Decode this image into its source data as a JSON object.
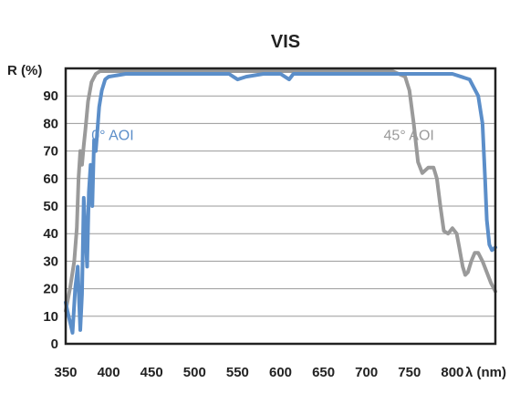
{
  "chart_data": {
    "type": "line",
    "title": "VIS",
    "xlabel": "λ (nm)",
    "ylabel": "R (%)",
    "xlim": [
      350,
      850
    ],
    "ylim": [
      0,
      100
    ],
    "x_ticks": [
      "350",
      "400",
      "450",
      "500",
      "550",
      "600",
      "650",
      "700",
      "750",
      "800"
    ],
    "y_ticks": [
      "0",
      "10",
      "20",
      "30",
      "40",
      "50",
      "60",
      "70",
      "80",
      "90"
    ],
    "grid": "horizontal",
    "annotations": [
      {
        "text": "0° AOI",
        "series": "0° AOI",
        "x": 380,
        "y": 74,
        "color": "#5b8ec9"
      },
      {
        "text": "45° AOI",
        "series": "45° AOI",
        "x": 720,
        "y": 74,
        "color": "#9a9a9a"
      }
    ],
    "series": [
      {
        "name": "45° AOI",
        "color": "#9a9a9a",
        "x": [
          350,
          355,
          360,
          363,
          365,
          367,
          369,
          371,
          373,
          376,
          380,
          385,
          390,
          400,
          450,
          500,
          550,
          600,
          650,
          700,
          730,
          745,
          750,
          755,
          760,
          765,
          772,
          778,
          782,
          786,
          790,
          795,
          800,
          805,
          808,
          812,
          815,
          818,
          822,
          826,
          830,
          835,
          840,
          845,
          850
        ],
        "y": [
          12,
          20,
          30,
          42,
          60,
          70,
          65,
          72,
          78,
          88,
          95,
          98,
          99,
          99,
          99,
          99,
          99,
          99,
          99,
          99,
          99,
          97,
          92,
          80,
          66,
          62,
          64,
          64,
          60,
          50,
          41,
          40,
          42,
          40,
          35,
          28,
          25,
          26,
          30,
          33,
          33,
          30,
          26,
          22,
          19
        ]
      },
      {
        "name": "0° AOI",
        "color": "#5b8ec9",
        "x": [
          350,
          352,
          355,
          358,
          361,
          364,
          367,
          369,
          371,
          373,
          375,
          377,
          379,
          381,
          383,
          385,
          387,
          389,
          392,
          396,
          400,
          420,
          450,
          500,
          540,
          550,
          560,
          580,
          600,
          610,
          615,
          620,
          650,
          700,
          750,
          800,
          820,
          830,
          835,
          838,
          840,
          843,
          846,
          850
        ],
        "y": [
          15,
          12,
          8,
          4,
          20,
          28,
          5,
          18,
          53,
          40,
          28,
          55,
          65,
          50,
          74,
          70,
          78,
          86,
          92,
          96,
          97,
          98,
          98,
          98,
          98,
          96,
          97,
          98,
          98,
          96,
          98,
          98,
          98,
          98,
          98,
          98,
          96,
          90,
          80,
          60,
          45,
          36,
          34,
          35
        ]
      }
    ]
  }
}
